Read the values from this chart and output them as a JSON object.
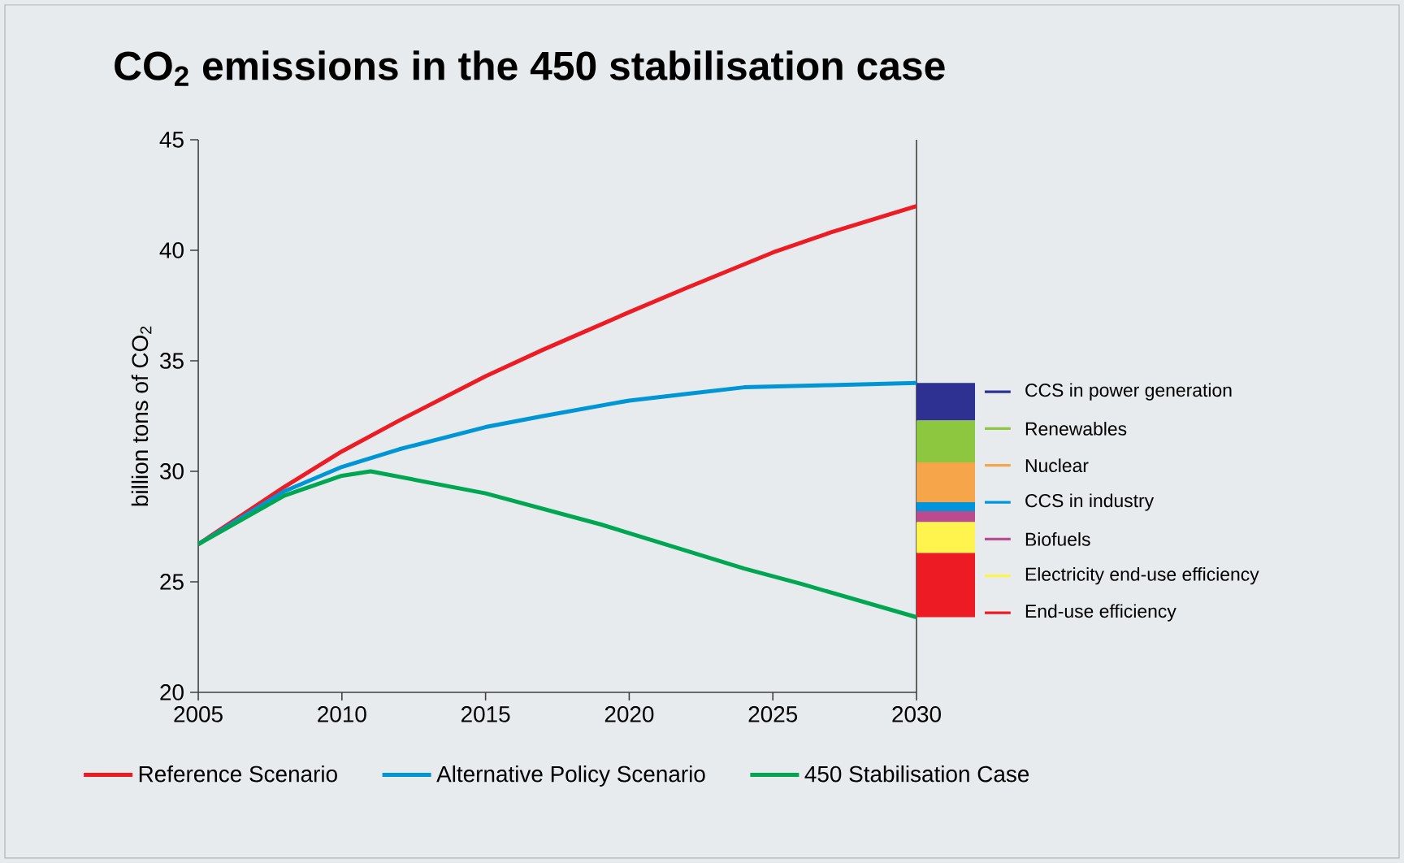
{
  "chart_data": {
    "type": "line",
    "title": "CO$_{2}$ emissions in the 450 stabilisation case",
    "ylabel": "billion tons of CO$_{2}$",
    "xlim": [
      2005,
      2030
    ],
    "ylim": [
      20,
      45
    ],
    "xticks": [
      2005,
      2010,
      2015,
      2020,
      2025,
      2030
    ],
    "yticks": [
      20,
      25,
      30,
      35,
      40,
      45
    ],
    "legend": "bottom",
    "series": [
      {
        "name": "Reference Scenario",
        "color": "#ed1c24",
        "x": [
          2005,
          2008,
          2010,
          2012,
          2015,
          2017,
          2020,
          2022,
          2025,
          2027,
          2030
        ],
        "values": [
          26.7,
          29.3,
          30.9,
          32.3,
          34.3,
          35.5,
          37.2,
          38.3,
          39.9,
          40.8,
          42.0
        ]
      },
      {
        "name": "Alternative Policy Scenario",
        "color": "#0096d6",
        "x": [
          2005,
          2008,
          2010,
          2012,
          2015,
          2017,
          2020,
          2022,
          2024,
          2027,
          2030
        ],
        "values": [
          26.7,
          29.1,
          30.2,
          31.0,
          32.0,
          32.5,
          33.2,
          33.5,
          33.8,
          33.9,
          34.0
        ]
      },
      {
        "name": "450 Stabilisation Case",
        "color": "#00a651",
        "x": [
          2005,
          2008,
          2010,
          2011,
          2015,
          2019,
          2020,
          2024,
          2026,
          2030
        ],
        "values": [
          26.7,
          28.9,
          29.8,
          30.0,
          29.0,
          27.6,
          27.2,
          25.6,
          24.9,
          23.4
        ]
      },
      {
        "name": "CCS in power generation",
        "type": "bar",
        "color": "#2e3192",
        "x": [
          2030
        ],
        "base": [
          32.3
        ],
        "values": [
          1.7
        ]
      },
      {
        "name": "Renewables",
        "type": "bar",
        "color": "#8dc63f",
        "x": [
          2030
        ],
        "base": [
          30.4
        ],
        "values": [
          1.9
        ]
      },
      {
        "name": "Nuclear",
        "type": "bar",
        "color": "#f7a54a",
        "x": [
          2030
        ],
        "base": [
          28.6
        ],
        "values": [
          1.8
        ]
      },
      {
        "name": "CCS in industry",
        "type": "bar",
        "color": "#0095da",
        "x": [
          2030
        ],
        "base": [
          28.2
        ],
        "values": [
          0.4
        ]
      },
      {
        "name": "Biofuels",
        "type": "bar",
        "color": "#bb4b8f",
        "x": [
          2030
        ],
        "base": [
          27.7
        ],
        "values": [
          0.5
        ]
      },
      {
        "name": "Electricity end-use efficiency",
        "type": "bar",
        "color": "#fff34d",
        "x": [
          2030
        ],
        "base": [
          26.3
        ],
        "values": [
          1.4
        ]
      },
      {
        "name": "End-use efficiency",
        "type": "bar",
        "color": "#ed1c24",
        "x": [
          2030
        ],
        "base": [
          23.4
        ],
        "values": [
          2.9
        ]
      }
    ]
  }
}
